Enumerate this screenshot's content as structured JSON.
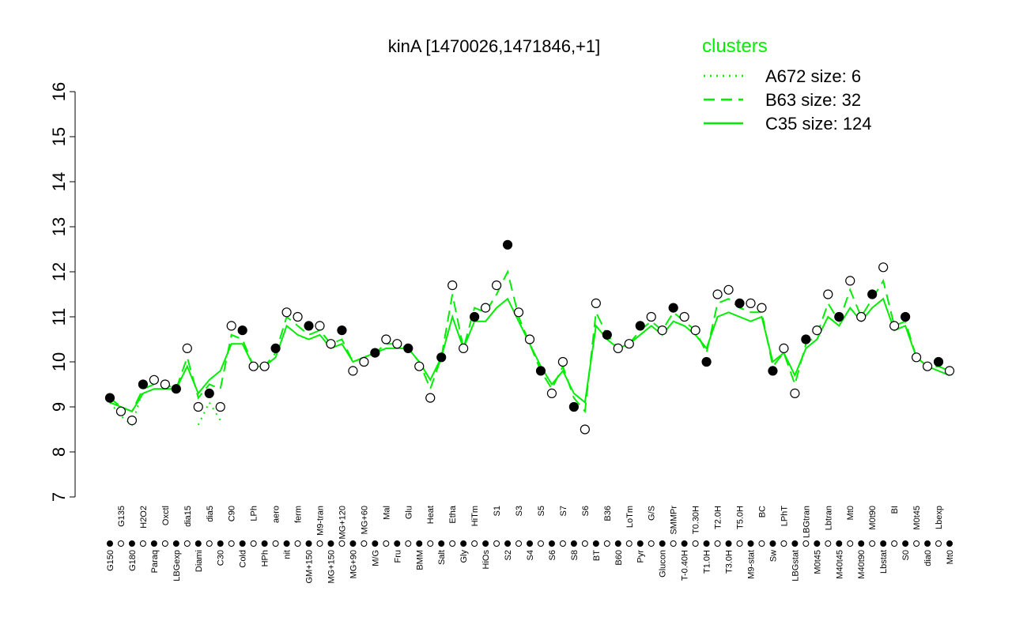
{
  "chart_data": {
    "type": "line",
    "title": "kinA [1470026,1471846,+1]",
    "legend_title": "clusters",
    "categories": [
      "G150",
      "G135",
      "G180",
      "H2O2",
      "Paraq",
      "Oxctl",
      "LBGexp",
      "dia15",
      "Diami",
      "dia5",
      "C30",
      "C90",
      "Cold",
      "LPh",
      "HPh",
      "aero",
      "nit",
      "ferm",
      "GM+150",
      "M9-tran",
      "MG+150",
      "MG+120",
      "MG+90",
      "MG+60",
      "M/G",
      "Mal",
      "Fru",
      "Glu",
      "BMM",
      "Heat",
      "Salt",
      "Etha",
      "Gly",
      "HiTm",
      "HiOs",
      "S1",
      "S2",
      "S3",
      "S4",
      "S5",
      "S6",
      "S7",
      "S8",
      "S6",
      "BT",
      "B36",
      "B60",
      "LoTm",
      "Pyr",
      "G/S",
      "Glucon",
      "SMMPr",
      "T-0.40H",
      "T0.30H",
      "T1.0H",
      "T2.0H",
      "T3.0H",
      "T5.0H",
      "M9-stat",
      "BC",
      "Sw",
      "LPhT",
      "LBGstat",
      "LBGtran",
      "M0t45",
      "Lbtran",
      "M40t45",
      "Mt0",
      "M40t90",
      "M0t90",
      "Lbstat",
      "BI",
      "S0",
      "M0t45",
      "dia0",
      "Lbexp",
      "Mt0"
    ],
    "values": [
      9.2,
      8.9,
      8.7,
      9.5,
      9.6,
      9.5,
      9.4,
      10.3,
      9.0,
      9.3,
      9.0,
      10.8,
      10.7,
      9.9,
      9.9,
      10.3,
      11.1,
      11.0,
      10.8,
      10.8,
      10.4,
      10.7,
      9.8,
      10.0,
      10.2,
      10.5,
      10.4,
      10.3,
      9.9,
      9.2,
      10.1,
      11.7,
      10.3,
      11.0,
      11.2,
      11.7,
      12.6,
      11.1,
      10.5,
      9.8,
      9.3,
      10.0,
      9.0,
      8.5,
      11.3,
      10.6,
      10.3,
      10.4,
      10.8,
      11.0,
      10.7,
      11.2,
      11.0,
      10.7,
      10.0,
      11.5,
      11.6,
      11.3,
      11.3,
      11.2,
      9.8,
      10.3,
      9.3,
      10.5,
      10.7,
      11.5,
      11.0,
      11.8,
      11.0,
      11.5,
      12.1,
      10.8,
      11.0,
      10.1,
      9.9,
      10.0,
      9.8
    ],
    "series": [
      {
        "name": "A672 size: 6",
        "color": "#00ee00",
        "dash": "dotted",
        "values": [
          9.1,
          8.8,
          8.6,
          9.4,
          null,
          null,
          null,
          null,
          8.6,
          9.1,
          8.7,
          null,
          null,
          null,
          null,
          null,
          null,
          null,
          null,
          null,
          null,
          null,
          null,
          null,
          null,
          null,
          null,
          null,
          null,
          null,
          null,
          null,
          null,
          null,
          null,
          null,
          null,
          null,
          null,
          null,
          null,
          null,
          null,
          null,
          null,
          null,
          null,
          null,
          null,
          null,
          null,
          null,
          null,
          null,
          null,
          null,
          null,
          null,
          null,
          null,
          null,
          null,
          null,
          null,
          null,
          null,
          null,
          null,
          null,
          null,
          null,
          null,
          null,
          null,
          null,
          null,
          null
        ]
      },
      {
        "name": "B63 size: 32",
        "color": "#00ee00",
        "dash": "dashed",
        "values": [
          9.2,
          9.0,
          8.9,
          9.4,
          9.5,
          9.5,
          9.4,
          10.1,
          9.2,
          9.5,
          9.4,
          10.6,
          10.5,
          9.9,
          9.9,
          10.2,
          11.0,
          10.8,
          10.6,
          10.7,
          10.4,
          10.5,
          10.0,
          10.1,
          10.2,
          10.4,
          10.4,
          10.3,
          10.0,
          9.4,
          10.1,
          11.5,
          10.3,
          11.2,
          11.1,
          11.5,
          12.0,
          11.0,
          10.4,
          9.8,
          9.4,
          9.9,
          9.2,
          8.9,
          11.1,
          10.6,
          10.3,
          10.4,
          10.7,
          10.9,
          10.7,
          11.1,
          10.9,
          10.7,
          10.2,
          11.3,
          11.4,
          11.2,
          11.1,
          11.1,
          9.9,
          10.2,
          9.5,
          10.4,
          10.6,
          11.3,
          10.9,
          11.6,
          11.0,
          11.4,
          11.8,
          10.8,
          10.9,
          10.1,
          9.9,
          9.9,
          9.8
        ]
      },
      {
        "name": "C35 size: 124",
        "color": "#00ee00",
        "dash": "solid",
        "values": [
          9.1,
          9.0,
          8.9,
          9.3,
          9.4,
          9.4,
          9.4,
          9.9,
          9.3,
          9.6,
          9.8,
          10.4,
          10.4,
          9.9,
          9.9,
          10.1,
          10.8,
          10.6,
          10.5,
          10.6,
          10.3,
          10.4,
          10.0,
          10.1,
          10.2,
          10.3,
          10.3,
          10.3,
          10.0,
          9.6,
          10.1,
          11.0,
          10.3,
          10.9,
          10.9,
          11.2,
          11.4,
          10.9,
          10.4,
          9.9,
          9.5,
          9.8,
          9.3,
          9.1,
          10.8,
          10.5,
          10.3,
          10.4,
          10.6,
          10.8,
          10.6,
          10.9,
          10.8,
          10.6,
          10.3,
          11.0,
          11.1,
          11.0,
          10.9,
          11.0,
          10.0,
          10.2,
          9.7,
          10.3,
          10.5,
          11.0,
          10.8,
          11.2,
          10.9,
          11.2,
          11.4,
          10.7,
          10.8,
          10.1,
          9.9,
          9.8,
          9.7
        ]
      }
    ],
    "ylim": [
      7,
      16
    ],
    "yticks": [
      7,
      8,
      9,
      10,
      11,
      12,
      13,
      14,
      15,
      16
    ]
  }
}
